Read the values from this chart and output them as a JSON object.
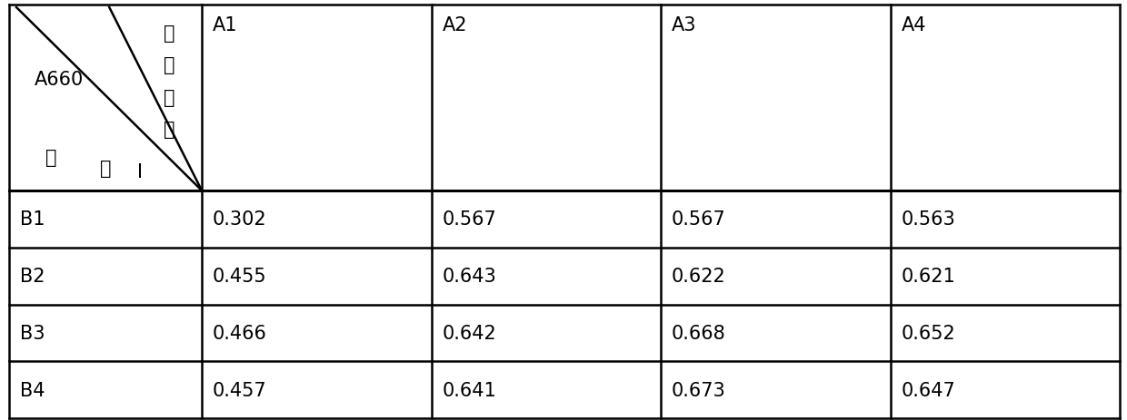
{
  "col_headers": [
    "A1",
    "A2",
    "A3",
    "A4"
  ],
  "row_headers": [
    "B1",
    "B2",
    "B3",
    "B4"
  ],
  "data": [
    [
      "0.302",
      "0.567",
      "0.567",
      "0.563"
    ],
    [
      "0.455",
      "0.643",
      "0.622",
      "0.621"
    ],
    [
      "0.466",
      "0.642",
      "0.668",
      "0.652"
    ],
    [
      "0.457",
      "0.641",
      "0.673",
      "0.647"
    ]
  ],
  "corner_label_row": "A660",
  "corner_label_col_top": "绿化",
  "corner_label_col_mid": "血红",
  "corner_label_bottom1": "辅",
  "corner_label_bottom2": "酵",
  "corner_label_bottom3": "I",
  "bg_color": "#ffffff",
  "line_color": "#000000",
  "font_size": 15,
  "header_font_size": 15
}
